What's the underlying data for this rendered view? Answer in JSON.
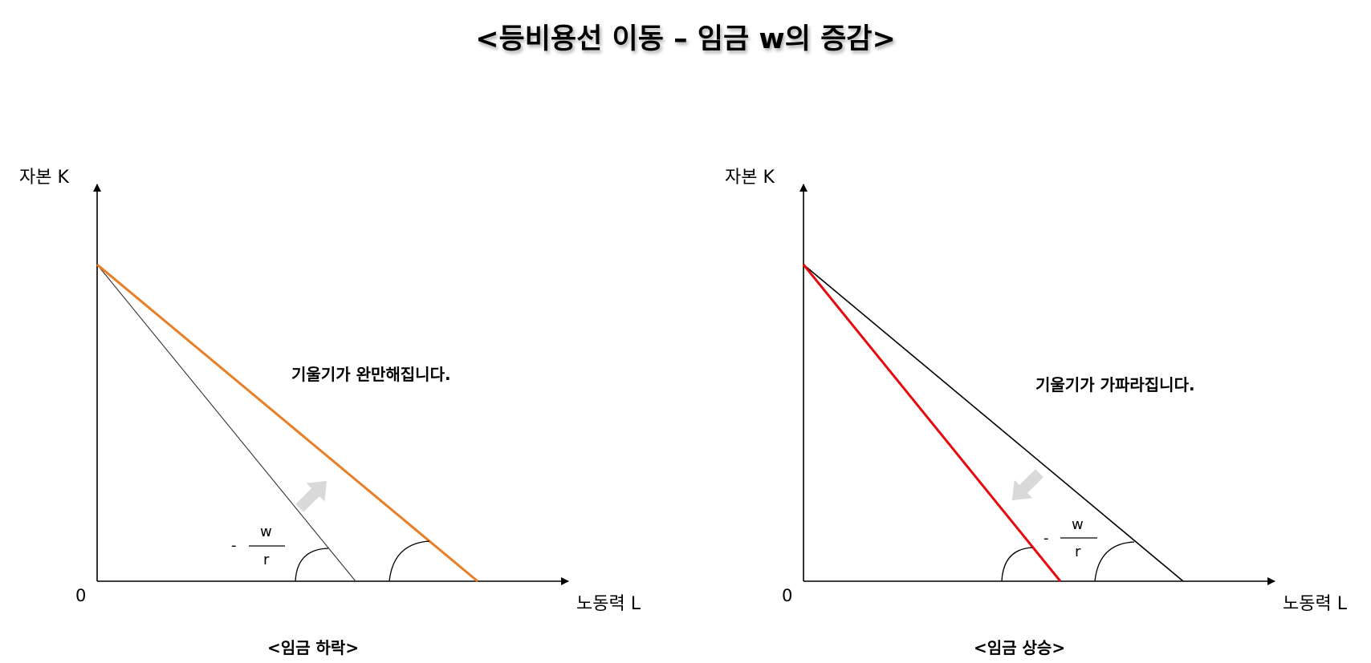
{
  "title": "<등비용선 이동 – 임금 w의 증감>",
  "colors": {
    "wage_fall_new_line": "#e87e25",
    "wage_rise_new_line": "#e8090f",
    "base_line": "#000000",
    "arrow": "#d9d9d9"
  },
  "panels": [
    {
      "id": "wage-fall",
      "y_axis_label": "자본 K",
      "x_axis_label": "노동력 L",
      "origin_label": "0",
      "note": "기울기가 완만해집니다.",
      "slope_numerator": "w",
      "slope_denominator": "r",
      "slope_sign": "-",
      "caption": "<임금 하락>",
      "arrow_direction": "up-right"
    },
    {
      "id": "wage-rise",
      "y_axis_label": "자본 K",
      "x_axis_label": "노동력 L",
      "origin_label": "0",
      "note": "기울기가 가파라집니다.",
      "slope_numerator": "w",
      "slope_denominator": "r",
      "slope_sign": "-",
      "caption": "<임금 상승>",
      "arrow_direction": "down-left"
    }
  ]
}
